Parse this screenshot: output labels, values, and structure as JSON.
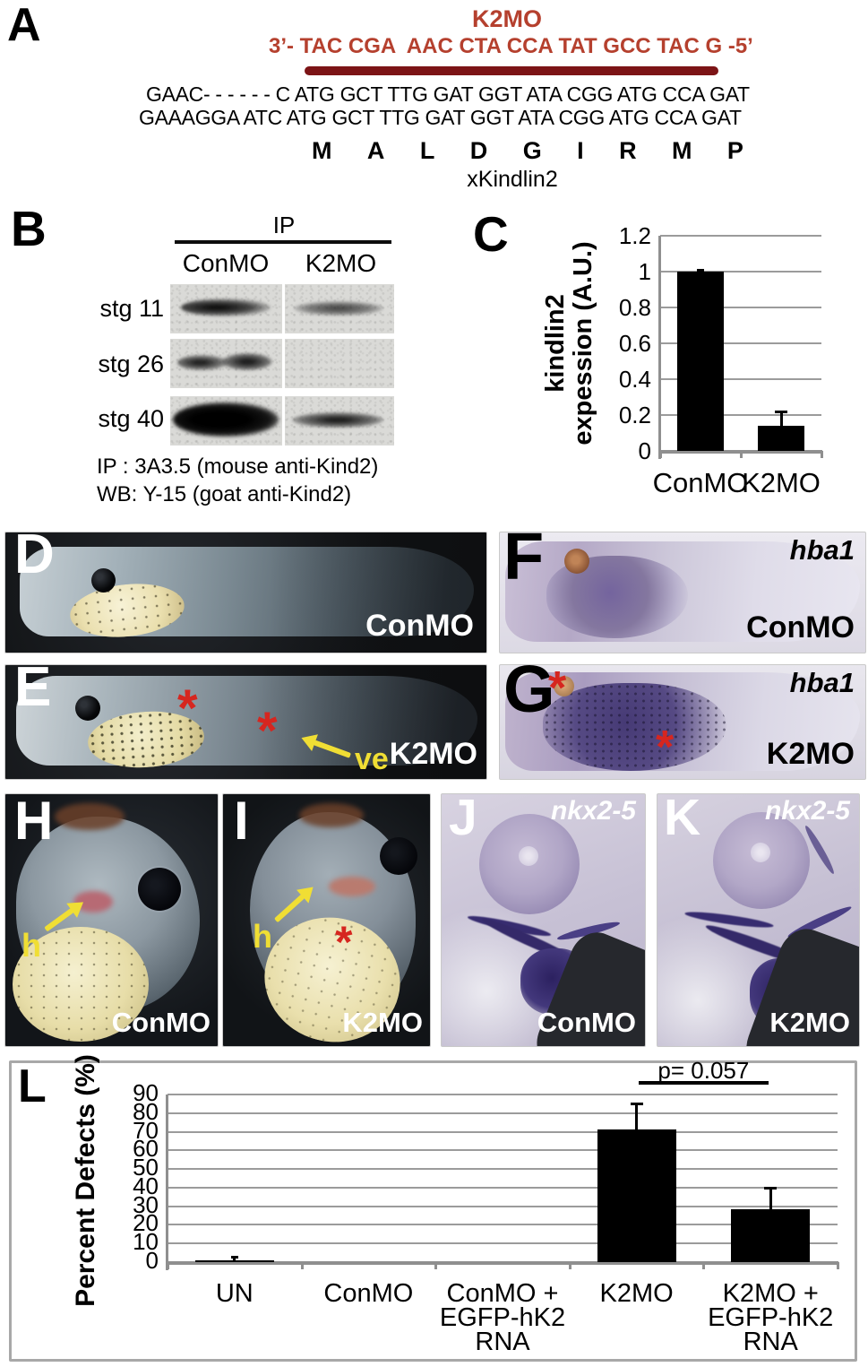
{
  "panelA": {
    "label": "A",
    "mo_name": "K2MO",
    "mo_sequence": "3’- TAC CGA  AAC CTA CCA TAT GCC TAC G -5’",
    "morphant_line": "GAAC- - - - - - C ATG GCT TTG GAT GGT ATA CGG ATG CCA GAT",
    "genomic_line": "GAAAGGA ATC ATG GCT TTG GAT GGT ATA CGG ATG CCA GAT",
    "amino_acids": [
      "M",
      "A",
      "L",
      "D",
      "G",
      "I",
      "R",
      "M",
      "P"
    ],
    "protein_name": "xKindlin2"
  },
  "panelB": {
    "label": "B",
    "ip_header": "IP",
    "lane1": "ConMO",
    "lane2": "K2MO",
    "rows": [
      "stg 11",
      "stg 26",
      "stg 40"
    ],
    "caption_line1": "IP : 3A3.5 (mouse anti-Kind2)",
    "caption_line2": "WB: Y-15 (goat anti-Kind2)"
  },
  "panelC": {
    "label": "C",
    "ylabel_line1": "kindlin2",
    "ylabel_line2": "expession (A.U.)"
  },
  "panelD": {
    "label": "D",
    "treatment": "ConMO"
  },
  "panelE": {
    "label": "E",
    "treatment": "K2MO",
    "annotation_ve": "ve",
    "asterisk": "*"
  },
  "panelF": {
    "label": "F",
    "gene": "hba1",
    "treatment": "ConMO"
  },
  "panelG": {
    "label": "G",
    "gene": "hba1",
    "treatment": "K2MO",
    "asterisk": "*"
  },
  "panelH": {
    "label": "H",
    "treatment": "ConMO",
    "annotation_h": "h"
  },
  "panelI": {
    "label": "I",
    "treatment": "K2MO",
    "annotation_h": "h",
    "asterisk": "*"
  },
  "panelJ": {
    "label": "J",
    "gene": "nkx2-5",
    "treatment": "ConMO"
  },
  "panelK": {
    "label": "K",
    "gene": "nkx2-5",
    "treatment": "K2MO"
  },
  "panelL": {
    "label": "L",
    "ylabel": "Percent Defects (%)"
  },
  "chart_data": [
    {
      "id": "panelC",
      "type": "bar",
      "categories": [
        "ConMO",
        "K2MO"
      ],
      "values": [
        1.0,
        0.14
      ],
      "errors_up": [
        0.01,
        0.08
      ],
      "title": "",
      "xlabel": "",
      "ylabel": "kindlin2 expession (A.U.)",
      "ylim": [
        0,
        1.2
      ],
      "yticks": [
        0,
        0.2,
        0.4,
        0.6,
        0.8,
        1,
        1.2
      ],
      "ytick_labels": [
        "0",
        "0.2",
        "0.4",
        "0.6",
        "0.8",
        "1",
        "1.2"
      ],
      "grid": true,
      "legend": "none"
    },
    {
      "id": "panelL",
      "type": "bar",
      "categories": [
        "UN",
        "ConMO",
        "ConMO +\nEGFP-hK2\nRNA",
        "K2MO",
        "K2MO +\nEGFP-hK2\nRNA"
      ],
      "values": [
        1,
        0,
        0,
        71,
        28.5
      ],
      "errors_up": [
        2,
        0,
        0,
        14,
        11.5
      ],
      "title": "",
      "xlabel": "",
      "ylabel": "Percent Defects (%)",
      "ylim": [
        0,
        90
      ],
      "yticks": [
        0,
        10,
        20,
        30,
        40,
        50,
        60,
        70,
        80,
        90
      ],
      "ytick_labels": [
        "0",
        "10",
        "20",
        "30",
        "40",
        "50",
        "60",
        "70",
        "80",
        "90"
      ],
      "grid": true,
      "legend": "none",
      "annotation": {
        "text": "p= 0.057",
        "between": [
          3,
          4
        ]
      }
    }
  ],
  "colors": {
    "sequence_red": "#b5402e",
    "underline_dark_red": "#7c1416",
    "annotation_yellow": "#f0de34",
    "asterisk_red": "#d6261f",
    "bar_black": "#000000",
    "gridline_gray": "#9b9b9b",
    "axis_gray": "#8f8f8f"
  }
}
